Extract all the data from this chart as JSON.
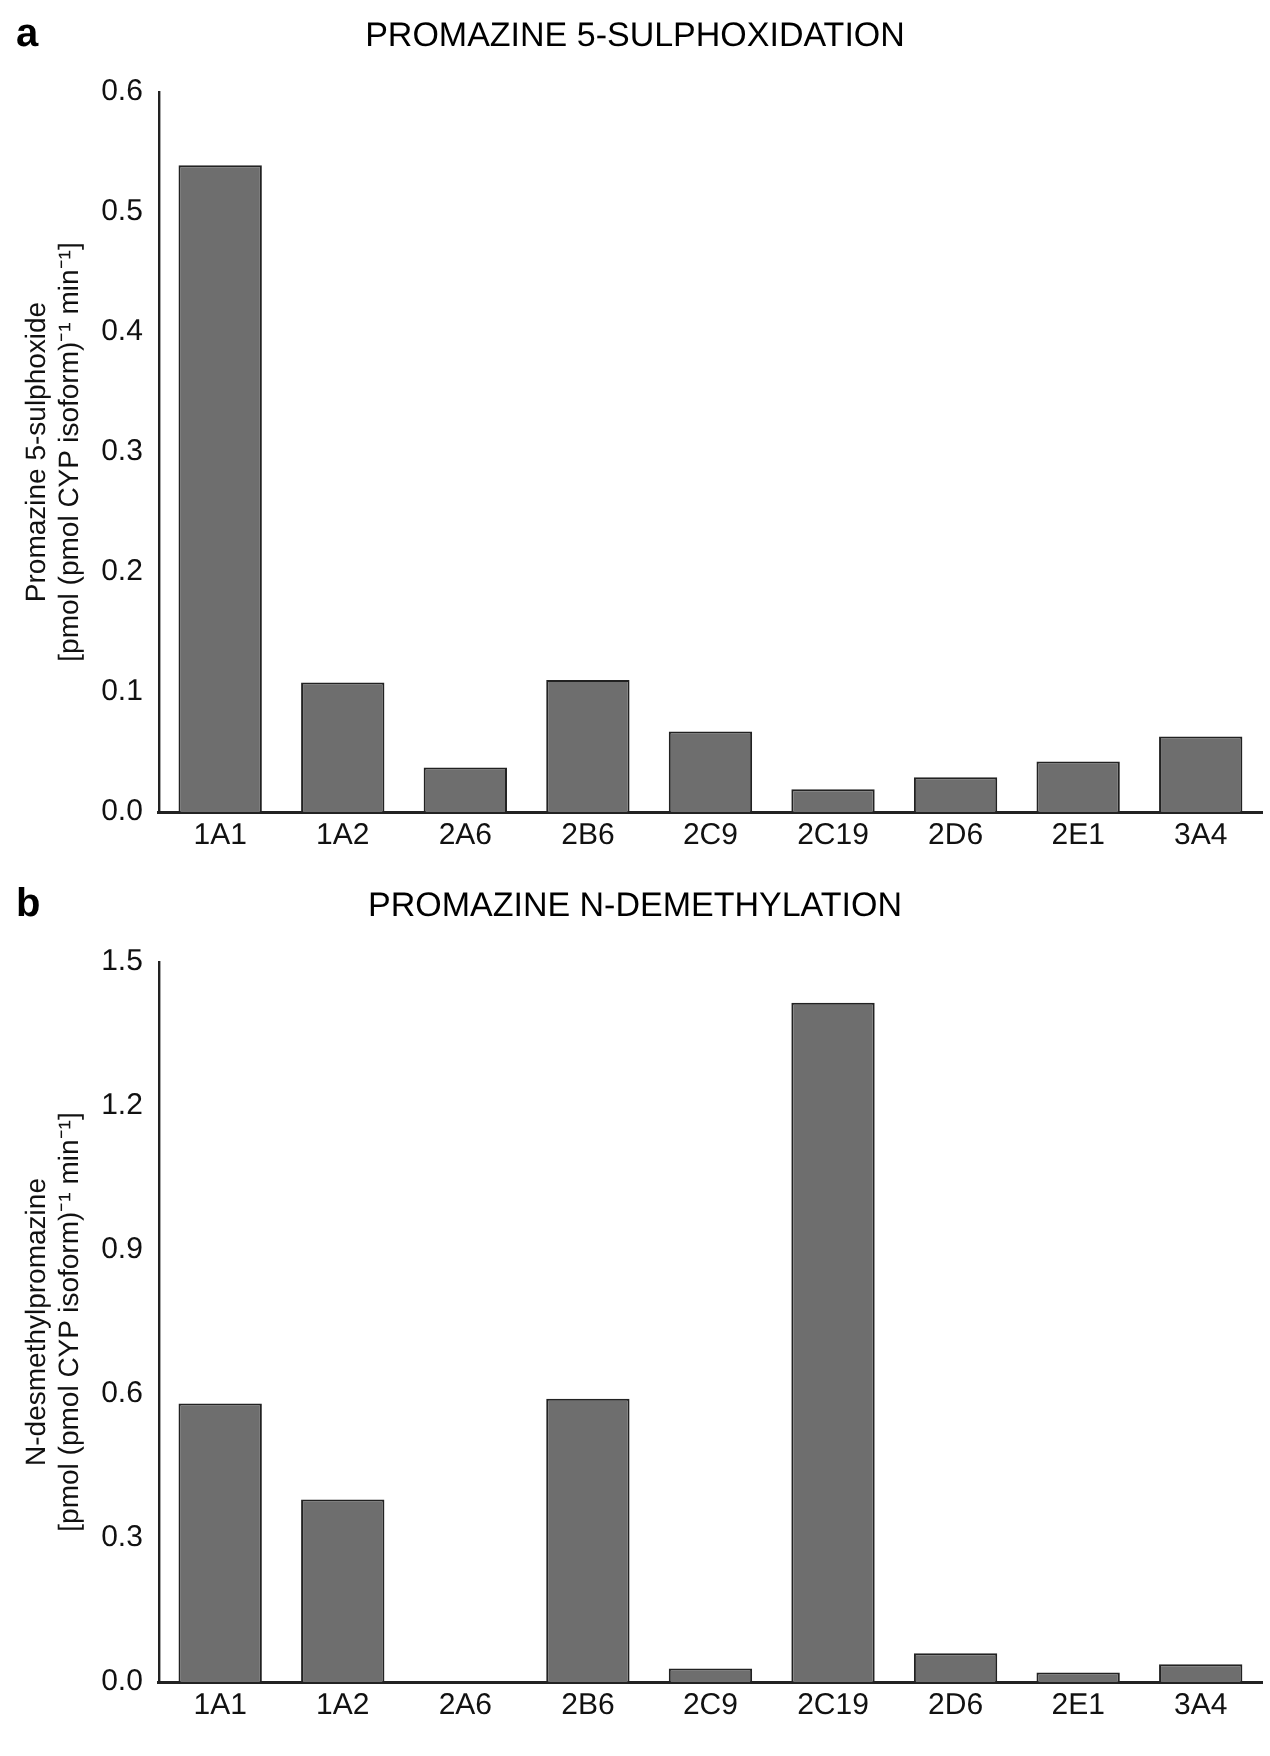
{
  "chart_data": [
    {
      "type": "bar",
      "title": "PROMAZINE 5-SULPHOXIDATION",
      "ylabel": "Promazine 5-sulphoxide\n[pmol (pmol CYP isoform)⁻¹ min⁻¹]",
      "annotations": [
        "a"
      ],
      "categories": [
        "1A1",
        "1A2",
        "2A6",
        "2B6",
        "2C9",
        "2C19",
        "2D6",
        "2E1",
        "3A4"
      ],
      "values": [
        0.539,
        0.108,
        0.037,
        0.11,
        0.067,
        0.019,
        0.029,
        0.042,
        0.063
      ],
      "color": "#6e6e6e",
      "ylim": [
        0,
        0.6
      ],
      "yticks": [
        {
          "value": 0,
          "label": "0.0"
        },
        0.1,
        0.2,
        0.3,
        0.4,
        0.5,
        0.6
      ],
      "grid": false,
      "legend": false
    },
    {
      "type": "bar",
      "title": "PROMAZINE N-DEMETHYLATION",
      "ylabel": "N-desmethylpromazine\n[pmol (pmol CYP isoform)⁻¹ min⁻¹]",
      "annotations": [
        "b"
      ],
      "categories": [
        "1A1",
        "1A2",
        "2A6",
        "2B6",
        "2C9",
        "2C19",
        "2D6",
        "2E1",
        "3A4"
      ],
      "values": [
        0.58,
        0.38,
        0,
        0.59,
        0.028,
        1.415,
        0.06,
        0.02,
        0.037
      ],
      "color": "#6e6e6e",
      "ylim": [
        0,
        1.5
      ],
      "yticks": [
        {
          "value": 0,
          "label": "0.0"
        },
        0.3,
        0.6,
        0.9,
        1.2,
        1.5
      ],
      "grid": false,
      "legend": false
    }
  ]
}
